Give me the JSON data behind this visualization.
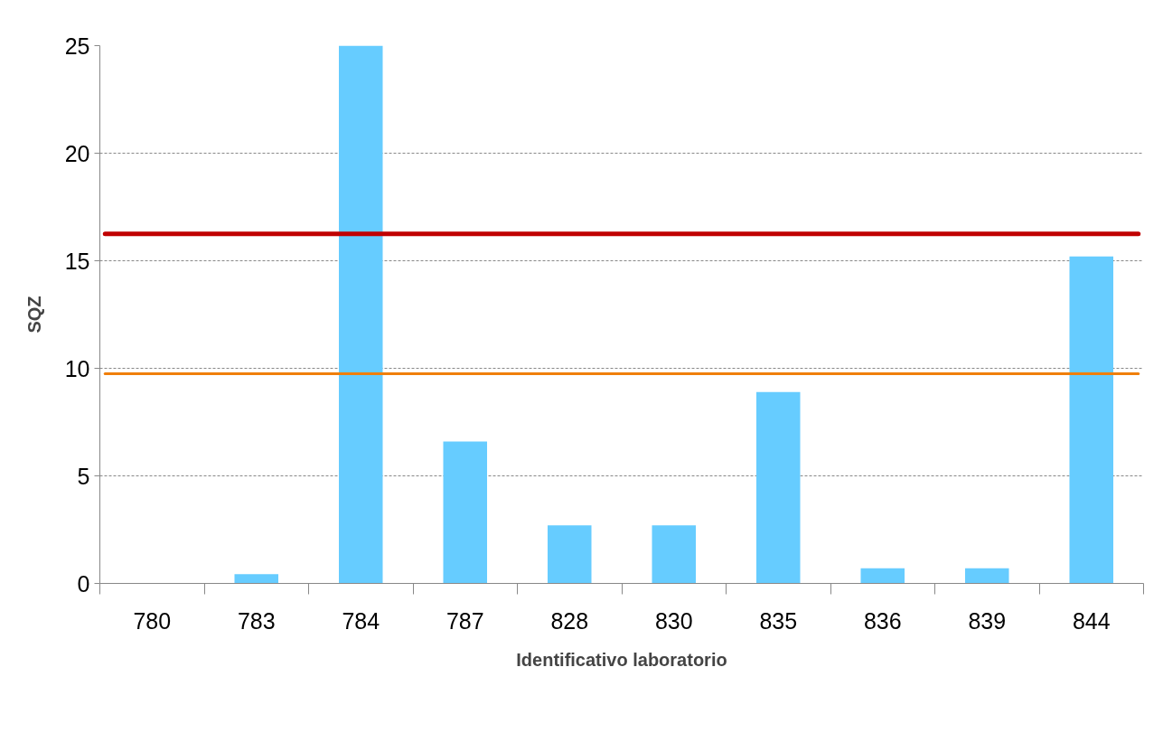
{
  "chart_data": {
    "type": "bar",
    "xlabel": "Identificativo laboratorio",
    "ylabel": "SQZ",
    "categories": [
      "780",
      "783",
      "784",
      "787",
      "828",
      "830",
      "835",
      "836",
      "839",
      "844"
    ],
    "values": [
      0,
      0.43,
      25,
      6.6,
      2.7,
      2.7,
      8.9,
      0.7,
      0.7,
      15.2
    ],
    "color": "#66ccff",
    "ylim": [
      0,
      25
    ],
    "yticks": [
      0,
      5,
      10,
      15,
      20,
      25
    ],
    "grid": "y",
    "ref_lines": [
      {
        "axis": "y",
        "value": 16.25,
        "color": "#c00000"
      },
      {
        "axis": "y",
        "value": 9.75,
        "color": "#f07f0a"
      }
    ]
  }
}
